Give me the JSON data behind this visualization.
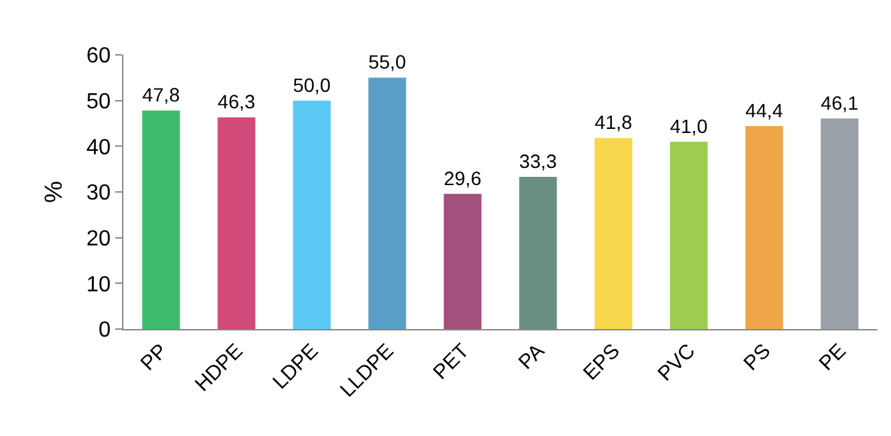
{
  "chart_data": {
    "type": "bar",
    "ylabel": "%",
    "categories": [
      "PP",
      "HDPE",
      "LDPE",
      "LLDPE",
      "PET",
      "PA",
      "EPS",
      "PVC",
      "PS",
      "PE"
    ],
    "values": [
      47.8,
      46.3,
      50.0,
      55.0,
      29.6,
      33.3,
      41.8,
      41.0,
      44.4,
      46.1
    ],
    "value_labels": [
      "47,8",
      "46,3",
      "50,0",
      "55,0",
      "29,6",
      "33,3",
      "41,8",
      "41,0",
      "44,4",
      "46,1"
    ],
    "colors": [
      "#3dbb6a",
      "#d14a7a",
      "#5cc9f5",
      "#5a9fc8",
      "#a4507c",
      "#6a8f80",
      "#f8d74c",
      "#9ccc52",
      "#eea648",
      "#9aa0a8"
    ],
    "ylim": [
      0,
      60
    ],
    "yticks": [
      0,
      10,
      20,
      30,
      40,
      50,
      60
    ],
    "grid": false,
    "legend": false
  }
}
